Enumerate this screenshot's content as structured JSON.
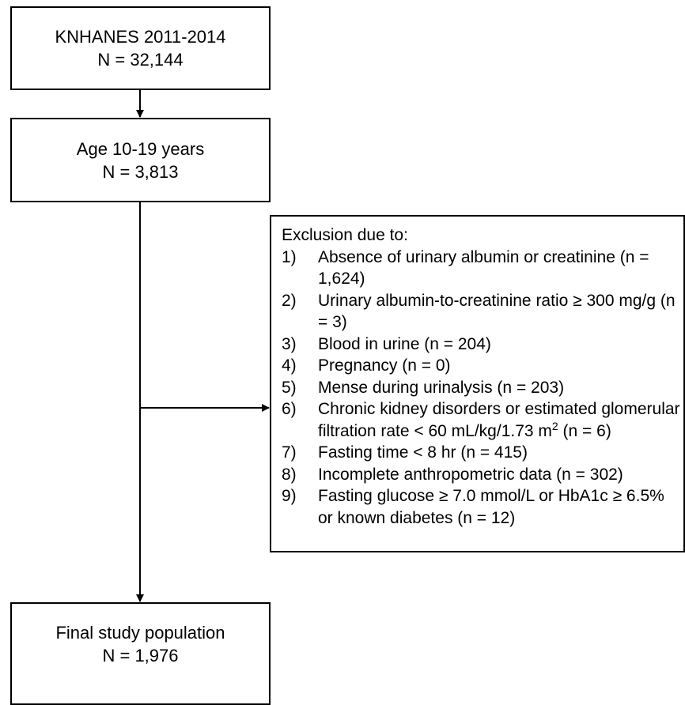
{
  "nodes": [
    {
      "label": "KNHANES 2011-2014",
      "count": "N = 32,144"
    },
    {
      "label": "Age 10-19 years",
      "count": "N = 3,813"
    },
    {
      "label": "Final study population",
      "count": "N = 1,976"
    }
  ],
  "exclusion": {
    "title": "Exclusion due to:",
    "items": [
      {
        "number": "1)",
        "text": "Absence of urinary albumin or creatinine (n = 1,624)"
      },
      {
        "number": "2)",
        "text": "Urinary albumin-to-creatinine ratio ≥ 300 mg/g (n = 3)"
      },
      {
        "number": "3)",
        "text": "Blood in urine (n = 204)"
      },
      {
        "number": "4)",
        "text": "Pregnancy (n = 0)"
      },
      {
        "number": "5)",
        "text": "Mense during urinalysis (n = 203)"
      },
      {
        "number": "6)",
        "text": "Chronic kidney disorders or estimated glomerular filtration rate < 60 mL/kg/1.73 m",
        "superscript": "2",
        "text_after": " (n = 6)"
      },
      {
        "number": "7)",
        "text": "Fasting time < 8 hr (n = 415)"
      },
      {
        "number": "8)",
        "text": "Incomplete anthropometric data (n = 302)"
      },
      {
        "number": "9)",
        "text": "Fasting glucose ≥ 7.0 mmol/L or HbA1c ≥ 6.5% or known diabetes (n = 12)"
      }
    ]
  }
}
